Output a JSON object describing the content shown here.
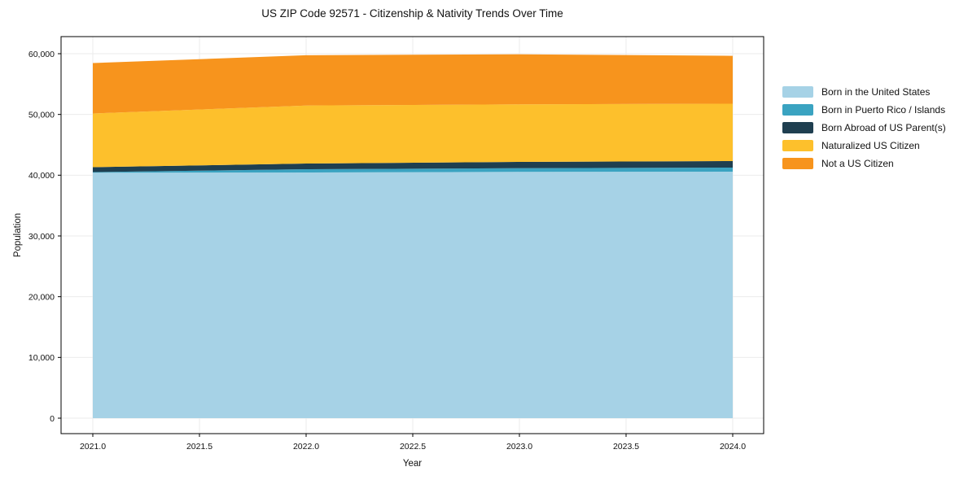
{
  "header": {
    "title": "US ZIP Code 92571 - Citizenship & Nativity Trends Over Time"
  },
  "chart_data": {
    "type": "area",
    "stacked": true,
    "title": "US ZIP Code 92571 - Citizenship & Nativity Trends Over Time",
    "xlabel": "Year",
    "ylabel": "Population",
    "grid": true,
    "legend_position": "outside-right",
    "x": [
      2021,
      2022,
      2023,
      2024
    ],
    "xticks": [
      2021.0,
      2021.5,
      2022.0,
      2022.5,
      2023.0,
      2023.5,
      2024.0
    ],
    "xtick_labels": [
      "2021.0",
      "2021.5",
      "2022.0",
      "2022.5",
      "2023.0",
      "2023.5",
      "2024.0"
    ],
    "yticks": [
      0,
      10000,
      20000,
      30000,
      40000,
      50000,
      60000
    ],
    "ytick_labels": [
      "0",
      "10,000",
      "20,000",
      "30,000",
      "40,000",
      "50,000",
      "60,000"
    ],
    "xlim": [
      2020.85,
      2024.15
    ],
    "ylim": [
      -2500,
      62800
    ],
    "series": [
      {
        "name": "Born in the United States",
        "color": "#A6D2E6",
        "values": [
          40400,
          40450,
          40540,
          40580
        ]
      },
      {
        "name": "Born in Puerto Rico / Islands",
        "color": "#3AA3C1",
        "values": [
          120,
          530,
          620,
          670
        ]
      },
      {
        "name": "Born Abroad of US Parent(s)",
        "color": "#1F3F50",
        "values": [
          800,
          940,
          1030,
          1070
        ]
      },
      {
        "name": "Naturalized US Citizen",
        "color": "#FDC02C",
        "values": [
          8840,
          9550,
          9470,
          9450
        ]
      },
      {
        "name": "Not a US Citizen",
        "color": "#F7941D",
        "values": [
          8300,
          8280,
          8250,
          7880
        ]
      }
    ],
    "totals": [
      58460,
      59750,
      59910,
      59650
    ],
    "colors": {
      "spine": "#000000",
      "grid": "#ebebeb",
      "text": "#111111",
      "background": "#ffffff"
    }
  }
}
